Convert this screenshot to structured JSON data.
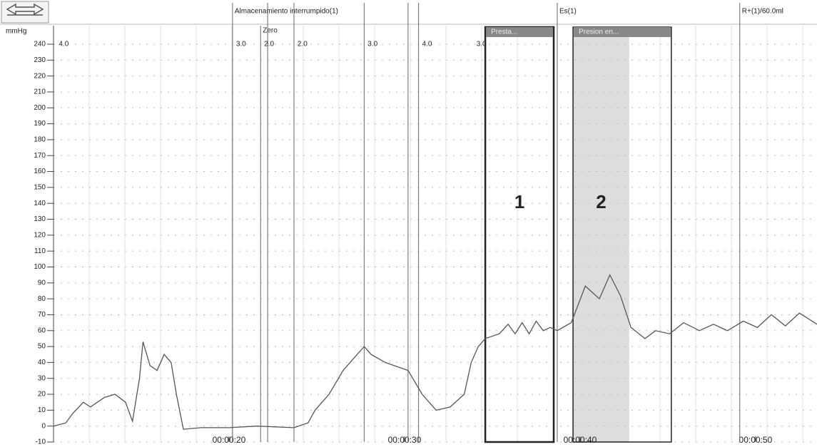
{
  "chart_data": {
    "type": "line",
    "y_label": "mmHg",
    "x": [
      10.0,
      10.7,
      11.1,
      11.7,
      12.1,
      12.9,
      13.5,
      14.1,
      14.5,
      14.9,
      15.1,
      15.5,
      15.9,
      16.3,
      16.7,
      17.0,
      17.4,
      18.4,
      20.0,
      21.6,
      23.7,
      24.5,
      24.9,
      25.7,
      26.5,
      27.3,
      27.7,
      28.1,
      28.9,
      30.2,
      31.0,
      31.8,
      32.6,
      33.4,
      33.8,
      34.2,
      34.6,
      35.4,
      35.9,
      36.3,
      36.7,
      37.1,
      37.5,
      37.9,
      38.3,
      38.7,
      39.5,
      40.3,
      41.1,
      41.7,
      42.3,
      42.9,
      43.7,
      44.3,
      45.1,
      45.9,
      46.8,
      47.6,
      48.4,
      49.3,
      50.1,
      50.9,
      51.7,
      52.5,
      53.5
    ],
    "values": [
      0,
      2,
      8,
      15,
      12,
      18,
      20,
      15,
      3,
      30,
      53,
      38,
      35,
      45,
      40,
      20,
      -2,
      -1,
      -1,
      0,
      -1,
      2,
      10,
      20,
      35,
      45,
      50,
      45,
      40,
      35,
      20,
      10,
      12,
      20,
      40,
      50,
      55,
      58,
      64,
      58,
      65,
      58,
      66,
      60,
      62,
      60,
      65,
      88,
      80,
      95,
      82,
      62,
      55,
      60,
      58,
      65,
      60,
      64,
      60,
      66,
      62,
      70,
      63,
      71,
      64
    ],
    "color": "#555555",
    "xlim": [
      10,
      53.5
    ],
    "ylim": [
      -10,
      240
    ],
    "yticks": [
      -10,
      0,
      10,
      20,
      30,
      40,
      50,
      60,
      70,
      80,
      90,
      100,
      110,
      120,
      130,
      140,
      150,
      160,
      170,
      180,
      190,
      200,
      210,
      220,
      230,
      240
    ],
    "xticks": [
      {
        "value": 20,
        "label": "00:00:20"
      },
      {
        "value": 30,
        "label": "00:00:30"
      },
      {
        "value": 40,
        "label": "00:00:40"
      },
      {
        "value": 50,
        "label": "00:00:50"
      }
    ],
    "grid": true,
    "events": [
      {
        "x": 20.2,
        "label": "Almacenamiento interrumpido(1)"
      },
      {
        "x": 21.8,
        "label": "Zero"
      },
      {
        "x": 22.2
      },
      {
        "x": 23.7
      },
      {
        "x": 27.7
      },
      {
        "x": 30.2
      },
      {
        "x": 30.8
      },
      {
        "x": 38.7,
        "label": "Es(1)"
      },
      {
        "x": 49.1,
        "label": "R+(1)/60.0ml"
      }
    ],
    "scale_labels": [
      {
        "x": 10.3,
        "label": "4.0"
      },
      {
        "x": 20.4,
        "label": "3.0"
      },
      {
        "x": 22.0,
        "label": "2.0"
      },
      {
        "x": 23.9,
        "label": "2.0"
      },
      {
        "x": 27.9,
        "label": "3.0"
      },
      {
        "x": 31.0,
        "label": "4.0"
      },
      {
        "x": 34.1,
        "label": "3.0"
      }
    ],
    "boxes": [
      {
        "x0": 34.6,
        "x1": 38.5,
        "header": "Presta...",
        "label": "1"
      },
      {
        "x0": 39.6,
        "x1": 45.2,
        "shade_x1": 42.8,
        "header": "Presion en...",
        "label": "2"
      }
    ]
  }
}
